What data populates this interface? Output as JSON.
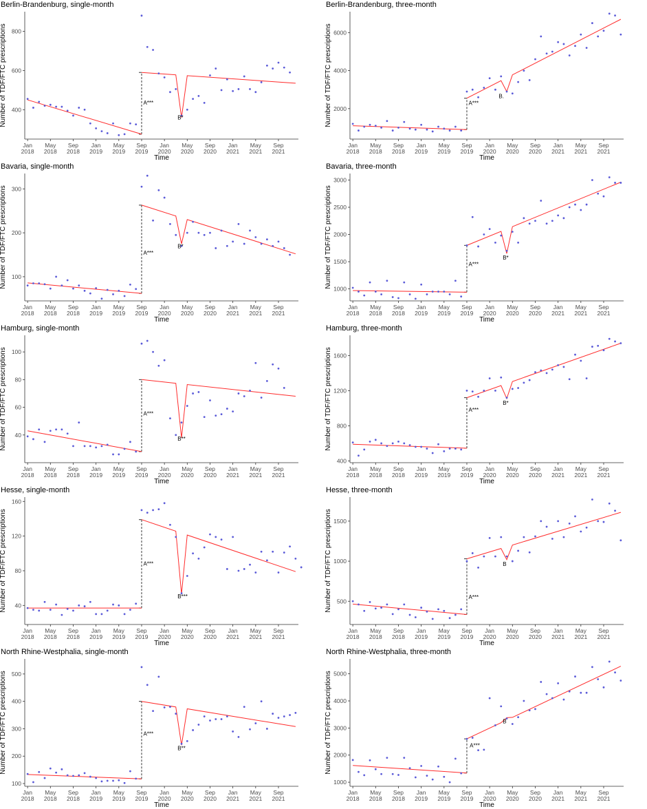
{
  "figure": {
    "x_tick_labels": [
      {
        "month": 1,
        "line1": "Jan",
        "line2": "2018"
      },
      {
        "month": 5,
        "line1": "May",
        "line2": "2018"
      },
      {
        "month": 9,
        "line1": "Sep",
        "line2": "2018"
      },
      {
        "month": 13,
        "line1": "Jan",
        "line2": "2019"
      },
      {
        "month": 17,
        "line1": "May",
        "line2": "2019"
      },
      {
        "month": 21,
        "line1": "Sep",
        "line2": "2019"
      },
      {
        "month": 25,
        "line1": "Jan",
        "line2": "2020"
      },
      {
        "month": 29,
        "line1": "May",
        "line2": "2020"
      },
      {
        "month": 33,
        "line1": "Sep",
        "line2": "2020"
      },
      {
        "month": 37,
        "line1": "Jan",
        "line2": "2021"
      },
      {
        "month": 41,
        "line1": "May",
        "line2": "2021"
      },
      {
        "month": 45,
        "line1": "Sep",
        "line2": "2021"
      }
    ],
    "colors": {
      "points": "#5a5ad8",
      "fit": "#ff2a2a",
      "axis": "#333333"
    }
  },
  "chart_data": [
    {
      "type": "scatter",
      "title": "Berlin-Brandenburg, single-month",
      "xlabel": "Time",
      "ylabel": "Number of TDF/FTC prescriptions",
      "xlim": [
        0.5,
        48.5
      ],
      "ylim": [
        250,
        900
      ],
      "yticks": [
        400,
        600,
        800
      ],
      "points": [
        455,
        410,
        440,
        420,
        425,
        415,
        415,
        395,
        370,
        410,
        400,
        330,
        305,
        290,
        280,
        330,
        270,
        275,
        330,
        325,
        880,
        720,
        705,
        585,
        565,
        490,
        505,
        370,
        400,
        455,
        470,
        435,
        575,
        610,
        500,
        555,
        495,
        505,
        570,
        505,
        490,
        540,
        625,
        610,
        640,
        615,
        590
      ],
      "pre_trend": [
        450,
        275
      ],
      "level_change": 590,
      "post_trend_end": 535,
      "dip_month": 28,
      "dip_value": 360,
      "annotations": [
        {
          "month": 21.3,
          "value": 425,
          "text": "A***"
        },
        {
          "month": 27.3,
          "value": 350,
          "text": "B*"
        }
      ]
    },
    {
      "type": "scatter",
      "title": "Berlin-Brandenburg, three-month",
      "xlabel": "Time",
      "ylabel": "Number of TDF/FTC prescriptions",
      "xlim": [
        0.5,
        48.5
      ],
      "ylim": [
        400,
        7100
      ],
      "yticks": [
        2000,
        4000,
        6000
      ],
      "points": [
        1200,
        850,
        1050,
        1150,
        1100,
        1000,
        1350,
        850,
        1000,
        1300,
        950,
        900,
        1150,
        900,
        800,
        1050,
        950,
        850,
        1050,
        850,
        2900,
        3000,
        2600,
        3100,
        3600,
        3000,
        3700,
        2900,
        2800,
        3400,
        4000,
        3500,
        4600,
        5800,
        4900,
        5000,
        5500,
        5400,
        4800,
        5300,
        5900,
        5200,
        6500,
        5800,
        6100,
        7000,
        6900,
        5900
      ],
      "pre_trend": [
        1100,
        900
      ],
      "level_change": 2550,
      "post_trend_end": 6700,
      "dip_month": 28,
      "dip_value": 2900,
      "annotations": [
        {
          "month": 21.3,
          "value": 2200,
          "text": "A***"
        },
        {
          "month": 26.6,
          "value": 2550,
          "text": "B."
        }
      ]
    },
    {
      "type": "scatter",
      "title": "Bavaria, single-month",
      "xlabel": "Time",
      "ylabel": "Number of TDF/FTC prescriptions",
      "xlim": [
        0.5,
        48.5
      ],
      "ylim": [
        45,
        335
      ],
      "yticks": [
        100,
        200,
        300
      ],
      "points": [
        80,
        85,
        85,
        83,
        73,
        100,
        80,
        92,
        73,
        80,
        68,
        62,
        74,
        50,
        70,
        60,
        68,
        56,
        82,
        72,
        305,
        330,
        228,
        297,
        280,
        220,
        195,
        170,
        200,
        225,
        200,
        195,
        200,
        165,
        205,
        170,
        180,
        220,
        175,
        205,
        190,
        175,
        185,
        170,
        180,
        165,
        150
      ],
      "pre_trend": [
        86,
        62
      ],
      "level_change": 263,
      "post_trend_end": 152,
      "dip_month": 28,
      "dip_value": 175,
      "annotations": [
        {
          "month": 21.3,
          "value": 150,
          "text": "A***"
        },
        {
          "month": 27.3,
          "value": 165,
          "text": "B*"
        }
      ]
    },
    {
      "type": "scatter",
      "title": "Bavaria, three-month",
      "xlabel": "Time",
      "ylabel": "Number of TDF/FTC prescriptions",
      "xlim": [
        0.5,
        48.5
      ],
      "ylim": [
        780,
        3120
      ],
      "yticks": [
        1000,
        1500,
        2000,
        2500,
        3000
      ],
      "points": [
        1020,
        950,
        880,
        1120,
        950,
        900,
        1150,
        850,
        830,
        1120,
        900,
        820,
        1080,
        900,
        950,
        950,
        950,
        900,
        1150,
        860,
        1800,
        2320,
        1780,
        2000,
        2100,
        1850,
        1980,
        1700,
        2050,
        1850,
        2300,
        2200,
        2250,
        2620,
        2200,
        2250,
        2350,
        2300,
        2500,
        2550,
        2450,
        2550,
        3000,
        2750,
        2700,
        3050,
        2950,
        2950
      ],
      "pre_trend": [
        970,
        940
      ],
      "level_change": 1800,
      "post_trend_end": 2960,
      "dip_month": 28,
      "dip_value": 1650,
      "annotations": [
        {
          "month": 21.3,
          "value": 1420,
          "text": "A***"
        },
        {
          "month": 27.3,
          "value": 1540,
          "text": "B*"
        }
      ]
    },
    {
      "type": "scatter",
      "title": "Hamburg, single-month",
      "xlabel": "Time",
      "ylabel": "Number of TDF/FTC prescriptions",
      "xlim": [
        0.5,
        48.5
      ],
      "ylim": [
        20,
        112
      ],
      "yticks": [
        40,
        60,
        80,
        100
      ],
      "points": [
        39,
        37,
        44,
        35,
        43,
        44,
        44,
        41,
        32,
        49,
        32,
        32,
        31,
        32,
        33,
        26,
        26,
        30,
        35,
        28,
        106,
        108,
        100,
        90,
        94,
        52,
        40,
        49,
        61,
        70,
        71,
        53,
        65,
        54,
        55,
        59,
        57,
        70,
        68,
        72,
        92,
        67,
        79,
        91,
        88,
        74
      ],
      "pre_trend": [
        43,
        28
      ],
      "level_change": 80,
      "post_trend_end": 68,
      "dip_month": 28,
      "dip_value": 38,
      "annotations": [
        {
          "month": 21.3,
          "value": 54,
          "text": "A***"
        },
        {
          "month": 27.3,
          "value": 36,
          "text": "B**"
        }
      ]
    },
    {
      "type": "scatter",
      "title": "Hamburg, three-month",
      "xlabel": "Time",
      "ylabel": "Number of TDF/FTC prescriptions",
      "xlim": [
        0.5,
        48.5
      ],
      "ylim": [
        380,
        1830
      ],
      "yticks": [
        400,
        800,
        1200,
        1600
      ],
      "points": [
        610,
        460,
        530,
        620,
        640,
        600,
        570,
        600,
        620,
        600,
        580,
        560,
        560,
        540,
        490,
        590,
        510,
        540,
        540,
        530,
        1200,
        1190,
        1130,
        1200,
        1340,
        1200,
        1350,
        1120,
        1220,
        1230,
        1290,
        1320,
        1410,
        1430,
        1400,
        1440,
        1490,
        1470,
        1330,
        1610,
        1540,
        1340,
        1700,
        1710,
        1660,
        1790,
        1760,
        1740
      ],
      "pre_trend": [
        590,
        545
      ],
      "level_change": 1120,
      "post_trend_end": 1740,
      "dip_month": 28,
      "dip_value": 1110,
      "annotations": [
        {
          "month": 21.3,
          "value": 960,
          "text": "A***"
        },
        {
          "month": 27.3,
          "value": 1040,
          "text": "B*"
        }
      ]
    },
    {
      "type": "scatter",
      "title": "Hesse, single-month",
      "xlabel": "Time",
      "ylabel": "Number of TDF/FTC prescriptions",
      "xlim": [
        0.5,
        48.5
      ],
      "ylim": [
        18,
        165
      ],
      "yticks": [
        40,
        80,
        120,
        160
      ],
      "points": [
        37,
        35,
        34,
        44,
        35,
        41,
        29,
        36,
        34,
        40,
        39,
        44,
        30,
        30,
        34,
        41,
        40,
        30,
        35,
        42,
        150,
        147,
        150,
        151,
        158,
        133,
        119,
        54,
        74,
        100,
        94,
        107,
        122,
        119,
        116,
        82,
        119,
        80,
        82,
        87,
        78,
        102,
        92,
        102,
        78,
        101,
        108,
        94,
        84
      ],
      "pre_trend": [
        37,
        37
      ],
      "level_change": 139,
      "post_trend_end": 79,
      "dip_month": 28,
      "dip_value": 53,
      "annotations": [
        {
          "month": 21.3,
          "value": 86,
          "text": "A***"
        },
        {
          "month": 27.3,
          "value": 48,
          "text": "B***"
        }
      ]
    },
    {
      "type": "scatter",
      "title": "Hesse, three-month",
      "xlabel": "Time",
      "ylabel": "Number of TDF/FTC prescriptions",
      "xlim": [
        0.5,
        48.5
      ],
      "ylim": [
        210,
        1800
      ],
      "yticks": [
        500,
        1000,
        1500
      ],
      "points": [
        500,
        460,
        380,
        490,
        410,
        420,
        460,
        340,
        400,
        460,
        330,
        300,
        420,
        370,
        280,
        400,
        380,
        290,
        330,
        400,
        1000,
        1100,
        920,
        1060,
        1290,
        1060,
        1300,
        1060,
        1000,
        1130,
        1300,
        1110,
        1310,
        1500,
        1430,
        1280,
        1500,
        1300,
        1470,
        1560,
        1370,
        1420,
        1770,
        1500,
        1490,
        1720,
        1630,
        1260
      ],
      "pre_trend": [
        465,
        335
      ],
      "level_change": 1030,
      "post_trend_end": 1610,
      "dip_month": 28,
      "dip_value": 1020,
      "annotations": [
        {
          "month": 21.3,
          "value": 530,
          "text": "A***"
        },
        {
          "month": 27.3,
          "value": 940,
          "text": "B"
        }
      ]
    },
    {
      "type": "scatter",
      "title": "North Rhine-Westphalia, single-month",
      "xlabel": "Time",
      "ylabel": "Number of TDF/FTC prescriptions",
      "xlim": [
        0.5,
        48.5
      ],
      "ylim": [
        90,
        555
      ],
      "yticks": [
        100,
        200,
        300,
        400,
        500
      ],
      "points": [
        135,
        105,
        142,
        120,
        155,
        140,
        152,
        130,
        128,
        130,
        138,
        125,
        120,
        108,
        110,
        110,
        112,
        102,
        145,
        118,
        525,
        460,
        365,
        490,
        378,
        380,
        355,
        245,
        255,
        295,
        315,
        345,
        330,
        335,
        335,
        345,
        290,
        270,
        380,
        298,
        320,
        400,
        300,
        355,
        340,
        345,
        350,
        358
      ],
      "pre_trend": [
        133,
        117
      ],
      "level_change": 400,
      "post_trend_end": 308,
      "dip_month": 28,
      "dip_value": 240,
      "annotations": [
        {
          "month": 21.3,
          "value": 275,
          "text": "A***"
        },
        {
          "month": 27.3,
          "value": 222,
          "text": "B**"
        }
      ]
    },
    {
      "type": "scatter",
      "title": "North Rhine-Westphalia, three-month",
      "xlabel": "Time",
      "ylabel": "Number of TDF/FTC prescriptions",
      "xlim": [
        0.5,
        48.5
      ],
      "ylim": [
        850,
        5550
      ],
      "yticks": [
        1000,
        2000,
        3000,
        4000,
        5000
      ],
      "points": [
        1820,
        1380,
        1260,
        1810,
        1480,
        1300,
        1900,
        1300,
        1270,
        1900,
        1520,
        1180,
        1600,
        1240,
        1100,
        1580,
        1200,
        1000,
        1870,
        1330,
        2600,
        2640,
        2180,
        2200,
        4100,
        3100,
        3800,
        3350,
        3150,
        3400,
        4000,
        3650,
        3700,
        4700,
        4250,
        4100,
        4650,
        4050,
        4350,
        4900,
        4300,
        4300,
        5250,
        4800,
        4500,
        5450,
        5050,
        4750
      ],
      "pre_trend": [
        1620,
        1340
      ],
      "level_change": 2600,
      "post_trend_end": 5280,
      "dip_month": 28,
      "dip_value": 3380,
      "annotations": [
        {
          "month": 21.5,
          "value": 2280,
          "text": "A***"
        },
        {
          "month": 27.3,
          "value": 3180,
          "text": "B"
        }
      ]
    }
  ]
}
